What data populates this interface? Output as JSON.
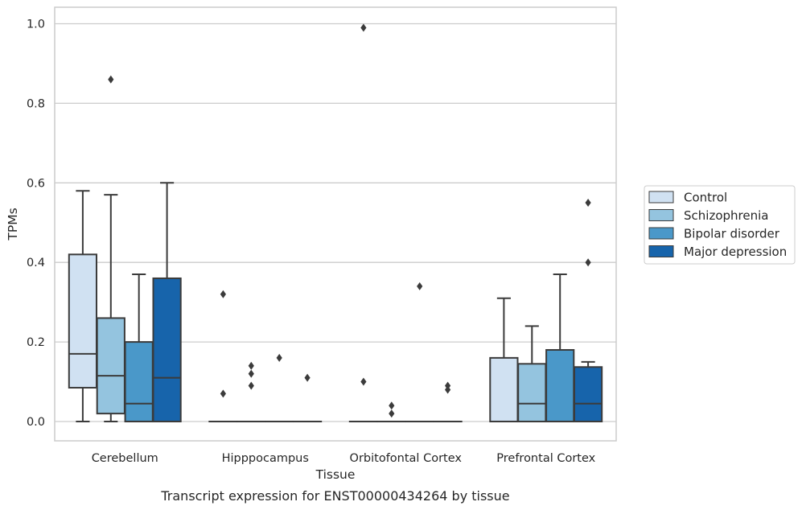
{
  "chart_data": {
    "type": "box",
    "title": "",
    "caption": "Transcript expression for ENST00000434264 by tissue",
    "xlabel": "Tissue",
    "ylabel": "TPMs",
    "ylim": [
      -0.048,
      1.04
    ],
    "yticks": [
      0.0,
      0.2,
      0.4,
      0.6,
      0.8,
      1.0
    ],
    "ytick_labels": [
      "0.0",
      "0.2",
      "0.4",
      "0.6",
      "0.8",
      "1.0"
    ],
    "grid": "horizontal",
    "legend_position": "right",
    "categories": [
      "Cerebellum",
      "Hipppocampus",
      "Orbitofontal Cortex",
      "Prefrontal Cortex"
    ],
    "series": [
      {
        "name": "Control",
        "color": "#d0e1f2",
        "boxes": [
          {
            "whisker_low": 0.0,
            "q1": 0.085,
            "median": 0.17,
            "q3": 0.42,
            "whisker_high": 0.58,
            "outliers": []
          },
          {
            "whisker_low": 0.0,
            "q1": 0.0,
            "median": 0.0,
            "q3": 0.0,
            "whisker_high": 0.0,
            "outliers": [
              0.07,
              0.32
            ]
          },
          {
            "whisker_low": 0.0,
            "q1": 0.0,
            "median": 0.0,
            "q3": 0.0,
            "whisker_high": 0.0,
            "outliers": [
              0.1,
              0.99
            ]
          },
          {
            "whisker_low": 0.0,
            "q1": 0.0,
            "median": 0.0,
            "q3": 0.16,
            "whisker_high": 0.31,
            "outliers": []
          }
        ]
      },
      {
        "name": "Schizophrenia",
        "color": "#94c4df",
        "boxes": [
          {
            "whisker_low": 0.0,
            "q1": 0.02,
            "median": 0.115,
            "q3": 0.26,
            "whisker_high": 0.57,
            "outliers": [
              0.86
            ]
          },
          {
            "whisker_low": 0.0,
            "q1": 0.0,
            "median": 0.0,
            "q3": 0.0,
            "whisker_high": 0.0,
            "outliers": [
              0.09,
              0.12,
              0.14
            ]
          },
          {
            "whisker_low": 0.0,
            "q1": 0.0,
            "median": 0.0,
            "q3": 0.0,
            "whisker_high": 0.0,
            "outliers": [
              0.02,
              0.04
            ]
          },
          {
            "whisker_low": 0.0,
            "q1": 0.0,
            "median": 0.045,
            "q3": 0.145,
            "whisker_high": 0.24,
            "outliers": []
          }
        ]
      },
      {
        "name": "Bipolar disorder",
        "color": "#4a98c9",
        "boxes": [
          {
            "whisker_low": 0.0,
            "q1": 0.0,
            "median": 0.045,
            "q3": 0.2,
            "whisker_high": 0.37,
            "outliers": []
          },
          {
            "whisker_low": 0.0,
            "q1": 0.0,
            "median": 0.0,
            "q3": 0.0,
            "whisker_high": 0.0,
            "outliers": [
              0.16
            ]
          },
          {
            "whisker_low": 0.0,
            "q1": 0.0,
            "median": 0.0,
            "q3": 0.0,
            "whisker_high": 0.0,
            "outliers": [
              0.34
            ]
          },
          {
            "whisker_low": 0.0,
            "q1": 0.0,
            "median": 0.0,
            "q3": 0.18,
            "whisker_high": 0.37,
            "outliers": []
          }
        ]
      },
      {
        "name": "Major depression",
        "color": "#1764ab",
        "boxes": [
          {
            "whisker_low": 0.0,
            "q1": 0.0,
            "median": 0.11,
            "q3": 0.36,
            "whisker_high": 0.6,
            "outliers": []
          },
          {
            "whisker_low": 0.0,
            "q1": 0.0,
            "median": 0.0,
            "q3": 0.0,
            "whisker_high": 0.0,
            "outliers": [
              0.11
            ]
          },
          {
            "whisker_low": 0.0,
            "q1": 0.0,
            "median": 0.0,
            "q3": 0.0,
            "whisker_high": 0.0,
            "outliers": [
              0.08,
              0.09
            ]
          },
          {
            "whisker_low": 0.0,
            "q1": 0.0,
            "median": 0.045,
            "q3": 0.137,
            "whisker_high": 0.15,
            "outliers": [
              0.4,
              0.55
            ]
          }
        ]
      }
    ]
  }
}
